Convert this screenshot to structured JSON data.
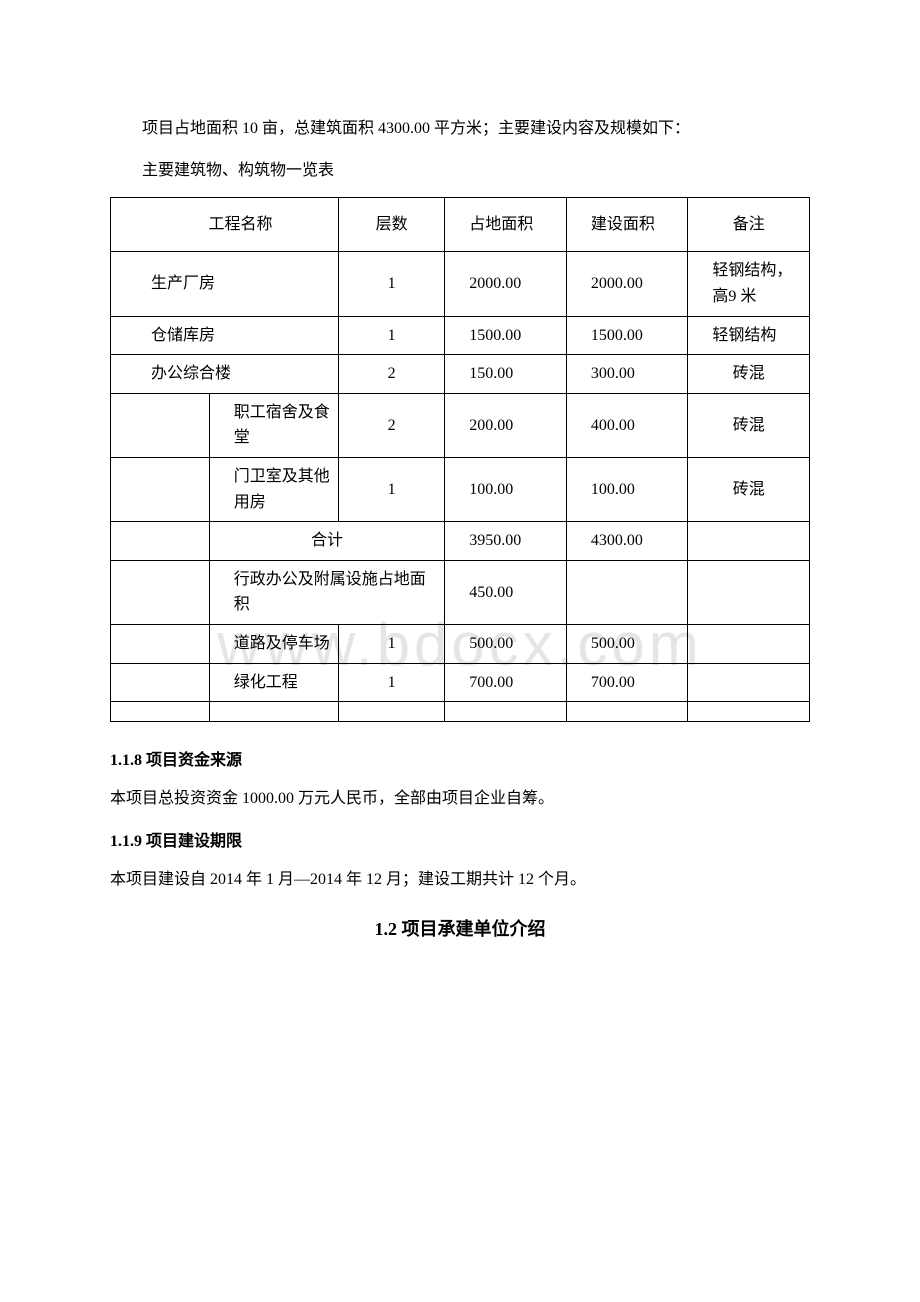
{
  "watermark": "www.bdocx.com",
  "intro": "项目占地面积 10 亩，总建筑面积 4300.00 平方米；主要建设内容及规模如下：",
  "caption": "主要建筑物、构筑物一览表",
  "headers": {
    "name": "工程名称",
    "floors": "层数",
    "land_area": "占地面积",
    "build_area": "建设面积",
    "remark": "备注"
  },
  "rows": [
    {
      "name": "生产厂房",
      "sub": "",
      "floors": "1",
      "land": "2000.00",
      "build": "2000.00",
      "remark": "轻钢结构，高9 米",
      "span": 2
    },
    {
      "name": "仓储库房",
      "sub": "",
      "floors": "1",
      "land": "1500.00",
      "build": "1500.00",
      "remark": "轻钢结构",
      "span": 2
    },
    {
      "name": "办公综合楼",
      "sub": "",
      "floors": "2",
      "land": "150.00",
      "build": "300.00",
      "remark": "砖混",
      "span": 2
    },
    {
      "name": "",
      "sub": "职工宿舍及食堂",
      "floors": "2",
      "land": "200.00",
      "build": "400.00",
      "remark": "砖混",
      "span": 1
    },
    {
      "name": "",
      "sub": "门卫室及其他用房",
      "floors": "1",
      "land": "100.00",
      "build": "100.00",
      "remark": "砖混",
      "span": 1
    },
    {
      "name": "",
      "sub": "合计",
      "floors": "",
      "land": "3950.00",
      "build": "4300.00",
      "remark": "",
      "span": 1,
      "merge_floors": true
    },
    {
      "name": "",
      "sub": "行政办公及附属设施占地面积",
      "floors": "",
      "land": "450.00",
      "build": "",
      "remark": "",
      "span": 1,
      "merge_floors": true
    },
    {
      "name": "",
      "sub": "道路及停车场",
      "floors": "1",
      "land": "500.00",
      "build": "500.00",
      "remark": "",
      "span": 1
    },
    {
      "name": "",
      "sub": "绿化工程",
      "floors": "1",
      "land": "700.00",
      "build": "700.00",
      "remark": "",
      "span": 1
    }
  ],
  "section_118": {
    "heading": "1.1.8 项目资金来源",
    "body": "本项目总投资资金 1000.00 万元人民币，全部由项目企业自筹。"
  },
  "section_119": {
    "heading": "1.1.9 项目建设期限",
    "body": "本项目建设自 2014 年 1 月—2014 年 12 月；建设工期共计 12 个月。"
  },
  "section_12": "1.2 项目承建单位介绍"
}
